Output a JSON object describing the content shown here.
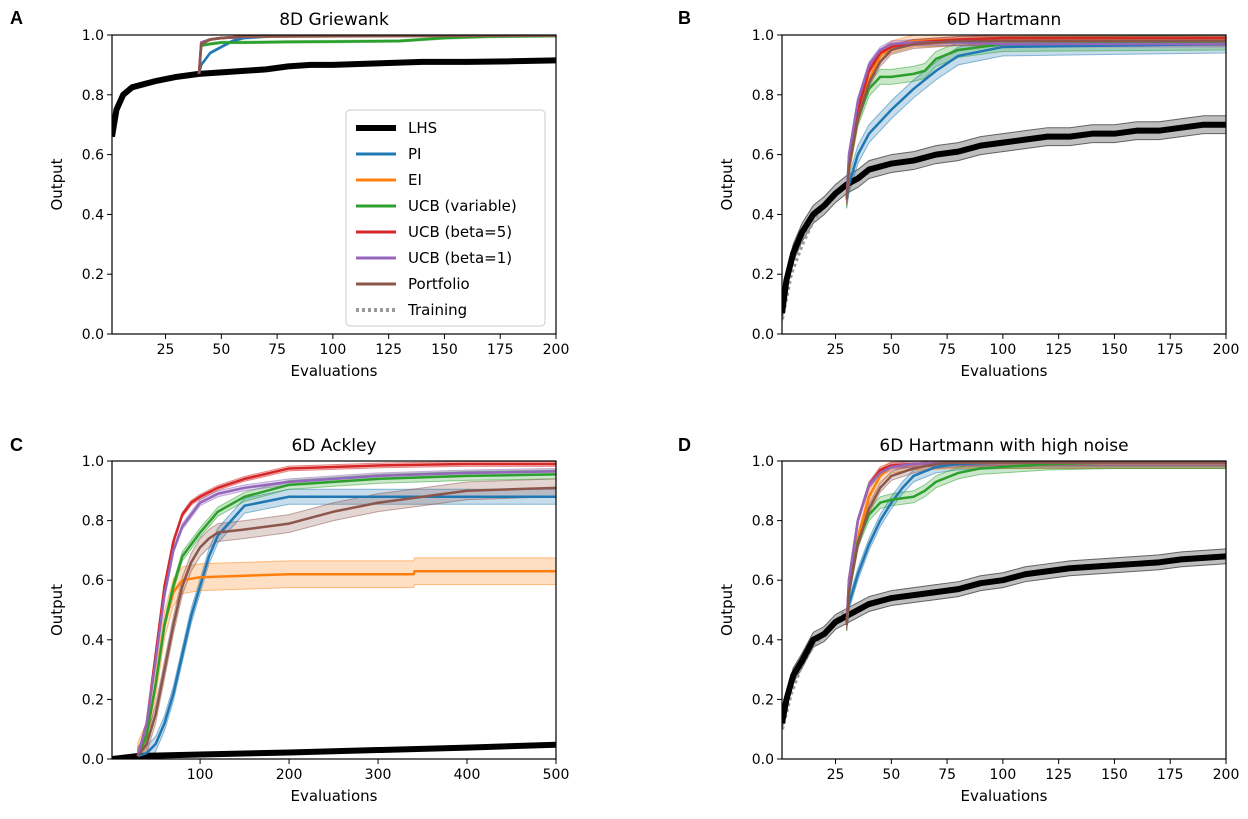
{
  "colors": {
    "LHS": "#000000",
    "PI": "#1f77b4",
    "EI": "#ff7f0e",
    "UCB (variable)": "#2ca02c",
    "UCB (beta=5)": "#d62728",
    "UCB (beta=1)": "#9467bd",
    "Portfolio": "#8c564b",
    "Training": "#999999"
  },
  "legend": {
    "entries": [
      "LHS",
      "PI",
      "EI",
      "UCB (variable)",
      "UCB (beta=5)",
      "UCB (beta=1)",
      "Portfolio",
      "Training"
    ]
  },
  "chart_data": [
    {
      "panel": "A",
      "type": "line",
      "title": "8D Griewank",
      "xlabel": "Evaluations",
      "ylabel": "Output",
      "xlim": [
        1,
        200
      ],
      "ylim": [
        0.0,
        1.0
      ],
      "xticks": [
        25,
        50,
        75,
        100,
        125,
        150,
        175,
        200
      ],
      "yticks": [
        0.0,
        0.2,
        0.4,
        0.6,
        0.8,
        1.0
      ],
      "ytick_labels": [
        "0.0",
        "0.2",
        "0.4",
        "0.6",
        "0.8",
        "1.0"
      ],
      "legend_position": "right",
      "series": [
        {
          "name": "Training",
          "x": [
            1,
            3,
            6,
            10,
            15,
            20,
            30,
            40
          ],
          "y": [
            0.66,
            0.75,
            0.8,
            0.825,
            0.835,
            0.845,
            0.86,
            0.87
          ],
          "band": 0
        },
        {
          "name": "LHS",
          "x": [
            1,
            3,
            6,
            10,
            15,
            20,
            30,
            40,
            50,
            60,
            70,
            80,
            90,
            100,
            120,
            140,
            160,
            180,
            200
          ],
          "y": [
            0.66,
            0.75,
            0.8,
            0.825,
            0.835,
            0.845,
            0.86,
            0.87,
            0.875,
            0.88,
            0.885,
            0.895,
            0.9,
            0.9,
            0.905,
            0.91,
            0.91,
            0.912,
            0.915
          ],
          "band": 0.004
        },
        {
          "name": "PI",
          "x": [
            40,
            41,
            45,
            50,
            55,
            60,
            70,
            80,
            200
          ],
          "y": [
            0.87,
            0.9,
            0.94,
            0.96,
            0.98,
            0.99,
            0.995,
            0.998,
            1.0
          ],
          "band": 0.004
        },
        {
          "name": "EI",
          "x": [
            40,
            41,
            45,
            50,
            60,
            200
          ],
          "y": [
            0.87,
            0.97,
            0.985,
            0.99,
            0.995,
            1.0
          ],
          "band": 0.003
        },
        {
          "name": "UCB (variable)",
          "x": [
            40,
            41,
            45,
            50,
            60,
            80,
            100,
            130,
            150,
            170,
            200
          ],
          "y": [
            0.87,
            0.965,
            0.97,
            0.975,
            0.975,
            0.977,
            0.978,
            0.98,
            0.99,
            0.995,
            0.997
          ],
          "band": 0.004
        },
        {
          "name": "UCB (beta=5)",
          "x": [
            40,
            41,
            45,
            50,
            70,
            200
          ],
          "y": [
            0.87,
            0.975,
            0.985,
            0.99,
            0.997,
            1.0
          ],
          "band": 0.003
        },
        {
          "name": "UCB (beta=1)",
          "x": [
            40,
            41,
            45,
            50,
            70,
            200
          ],
          "y": [
            0.87,
            0.975,
            0.985,
            0.99,
            0.997,
            1.0
          ],
          "band": 0.003
        },
        {
          "name": "Portfolio",
          "x": [
            40,
            41,
            45,
            50,
            60,
            200
          ],
          "y": [
            0.87,
            0.97,
            0.985,
            0.99,
            0.995,
            0.998
          ],
          "band": 0.003
        }
      ]
    },
    {
      "panel": "B",
      "type": "line",
      "title": "6D Hartmann",
      "xlabel": "Evaluations",
      "ylabel": "Output",
      "xlim": [
        1,
        200
      ],
      "ylim": [
        0.0,
        1.0
      ],
      "xticks": [
        25,
        50,
        75,
        100,
        125,
        150,
        175,
        200
      ],
      "yticks": [
        0.0,
        0.2,
        0.4,
        0.6,
        0.8,
        1.0
      ],
      "ytick_labels": [
        "0.0",
        "0.2",
        "0.4",
        "0.6",
        "0.8",
        "1.0"
      ],
      "series": [
        {
          "name": "Training",
          "x": [
            1,
            5,
            10,
            15,
            20,
            25,
            30
          ],
          "y": [
            0.05,
            0.2,
            0.3,
            0.38,
            0.43,
            0.47,
            0.5
          ],
          "band": 0
        },
        {
          "name": "LHS",
          "x": [
            1,
            3,
            6,
            10,
            15,
            20,
            25,
            30,
            35,
            40,
            50,
            60,
            70,
            80,
            90,
            100,
            110,
            120,
            130,
            140,
            150,
            160,
            170,
            180,
            190,
            200
          ],
          "y": [
            0.07,
            0.18,
            0.27,
            0.34,
            0.4,
            0.43,
            0.47,
            0.5,
            0.52,
            0.55,
            0.57,
            0.58,
            0.6,
            0.61,
            0.63,
            0.64,
            0.65,
            0.66,
            0.66,
            0.67,
            0.67,
            0.68,
            0.68,
            0.69,
            0.7,
            0.7
          ],
          "band": 0.03
        },
        {
          "name": "PI",
          "x": [
            30,
            31,
            35,
            40,
            50,
            60,
            70,
            80,
            100,
            150,
            200
          ],
          "y": [
            0.45,
            0.5,
            0.6,
            0.67,
            0.75,
            0.82,
            0.88,
            0.93,
            0.96,
            0.965,
            0.97
          ],
          "band": 0.03
        },
        {
          "name": "EI",
          "x": [
            30,
            31,
            35,
            40,
            45,
            50,
            60,
            80,
            100,
            200
          ],
          "y": [
            0.45,
            0.55,
            0.72,
            0.85,
            0.93,
            0.96,
            0.98,
            0.985,
            0.99,
            0.99
          ],
          "band": 0.02
        },
        {
          "name": "UCB (variable)",
          "x": [
            30,
            31,
            35,
            40,
            45,
            50,
            60,
            65,
            70,
            80,
            90,
            100,
            200
          ],
          "y": [
            0.45,
            0.56,
            0.72,
            0.82,
            0.86,
            0.86,
            0.87,
            0.88,
            0.92,
            0.95,
            0.96,
            0.97,
            0.975
          ],
          "band": 0.025
        },
        {
          "name": "UCB (beta=5)",
          "x": [
            30,
            31,
            35,
            40,
            45,
            50,
            60,
            70,
            80,
            100,
            200
          ],
          "y": [
            0.45,
            0.58,
            0.75,
            0.88,
            0.94,
            0.96,
            0.975,
            0.98,
            0.985,
            0.99,
            0.99
          ],
          "band": 0.01
        },
        {
          "name": "UCB (beta=1)",
          "x": [
            30,
            31,
            35,
            40,
            45,
            50,
            60,
            80,
            100,
            200
          ],
          "y": [
            0.45,
            0.6,
            0.78,
            0.9,
            0.95,
            0.97,
            0.975,
            0.975,
            0.97,
            0.97
          ],
          "band": 0.01
        },
        {
          "name": "Portfolio",
          "x": [
            30,
            31,
            35,
            40,
            45,
            50,
            60,
            70,
            80,
            100,
            200
          ],
          "y": [
            0.45,
            0.56,
            0.72,
            0.84,
            0.91,
            0.95,
            0.97,
            0.975,
            0.98,
            0.98,
            0.98
          ],
          "band": 0.015
        }
      ]
    },
    {
      "panel": "C",
      "type": "line",
      "title": "6D Ackley",
      "xlabel": "Evaluations",
      "ylabel": "Output",
      "xlim": [
        1,
        500
      ],
      "ylim": [
        0.0,
        1.0
      ],
      "xticks": [
        100,
        200,
        300,
        400,
        500
      ],
      "yticks": [
        0.0,
        0.2,
        0.4,
        0.6,
        0.8,
        1.0
      ],
      "ytick_labels": [
        "0.0",
        "0.2",
        "0.4",
        "0.6",
        "0.8",
        "1.0"
      ],
      "series": [
        {
          "name": "Training",
          "x": [
            1,
            10,
            20,
            30
          ],
          "y": [
            0.0,
            0.003,
            0.006,
            0.01
          ],
          "band": 0
        },
        {
          "name": "LHS",
          "x": [
            1,
            30,
            100,
            200,
            300,
            400,
            500
          ],
          "y": [
            0.0,
            0.01,
            0.015,
            0.022,
            0.03,
            0.038,
            0.048
          ],
          "band": 0.004
        },
        {
          "name": "PI",
          "x": [
            30,
            40,
            50,
            60,
            70,
            80,
            90,
            100,
            110,
            120,
            150,
            200,
            300,
            400,
            500
          ],
          "y": [
            0.01,
            0.02,
            0.05,
            0.12,
            0.22,
            0.35,
            0.48,
            0.58,
            0.68,
            0.75,
            0.85,
            0.88,
            0.88,
            0.88,
            0.88
          ],
          "band": 0.025
        },
        {
          "name": "EI",
          "x": [
            30,
            40,
            50,
            60,
            70,
            80,
            100,
            200,
            340,
            341,
            500
          ],
          "y": [
            0.01,
            0.08,
            0.25,
            0.45,
            0.56,
            0.6,
            0.61,
            0.62,
            0.62,
            0.63,
            0.63
          ],
          "band": 0.045
        },
        {
          "name": "UCB (variable)",
          "x": [
            30,
            40,
            50,
            60,
            70,
            80,
            100,
            120,
            150,
            200,
            300,
            400,
            500
          ],
          "y": [
            0.01,
            0.08,
            0.25,
            0.45,
            0.58,
            0.68,
            0.76,
            0.83,
            0.88,
            0.92,
            0.94,
            0.95,
            0.955
          ],
          "band": 0.015
        },
        {
          "name": "UCB (beta=5)",
          "x": [
            30,
            40,
            50,
            60,
            70,
            80,
            90,
            100,
            120,
            150,
            200,
            300,
            400,
            500
          ],
          "y": [
            0.01,
            0.12,
            0.35,
            0.58,
            0.73,
            0.82,
            0.86,
            0.88,
            0.91,
            0.94,
            0.975,
            0.985,
            0.99,
            0.99
          ],
          "band": 0.008
        },
        {
          "name": "UCB (beta=1)",
          "x": [
            30,
            40,
            50,
            60,
            70,
            80,
            100,
            120,
            150,
            200,
            300,
            400,
            500
          ],
          "y": [
            0.01,
            0.12,
            0.33,
            0.55,
            0.7,
            0.78,
            0.86,
            0.89,
            0.91,
            0.93,
            0.95,
            0.96,
            0.965
          ],
          "band": 0.01
        },
        {
          "name": "Portfolio",
          "x": [
            30,
            40,
            50,
            60,
            70,
            80,
            90,
            100,
            110,
            120,
            150,
            200,
            250,
            300,
            350,
            400,
            450,
            500
          ],
          "y": [
            0.01,
            0.05,
            0.15,
            0.3,
            0.45,
            0.58,
            0.66,
            0.71,
            0.74,
            0.76,
            0.77,
            0.79,
            0.83,
            0.86,
            0.88,
            0.9,
            0.905,
            0.91
          ],
          "band": 0.03
        }
      ]
    },
    {
      "panel": "D",
      "type": "line",
      "title": "6D Hartmann with high noise",
      "xlabel": "Evaluations",
      "ylabel": "Output",
      "xlim": [
        1,
        200
      ],
      "ylim": [
        0.0,
        1.0
      ],
      "xticks": [
        25,
        50,
        75,
        100,
        125,
        150,
        175,
        200
      ],
      "yticks": [
        0.0,
        0.2,
        0.4,
        0.6,
        0.8,
        1.0
      ],
      "ytick_labels": [
        "0.0",
        "0.2",
        "0.4",
        "0.6",
        "0.8",
        "1.0"
      ],
      "series": [
        {
          "name": "Training",
          "x": [
            1,
            5,
            10,
            15,
            20,
            25,
            30
          ],
          "y": [
            0.1,
            0.22,
            0.32,
            0.38,
            0.42,
            0.46,
            0.5
          ],
          "band": 0
        },
        {
          "name": "LHS",
          "x": [
            1,
            3,
            6,
            10,
            15,
            20,
            25,
            30,
            35,
            40,
            50,
            60,
            70,
            80,
            90,
            100,
            110,
            120,
            130,
            140,
            150,
            160,
            170,
            180,
            190,
            200
          ],
          "y": [
            0.12,
            0.2,
            0.28,
            0.33,
            0.4,
            0.42,
            0.46,
            0.48,
            0.5,
            0.52,
            0.54,
            0.55,
            0.56,
            0.57,
            0.59,
            0.6,
            0.62,
            0.63,
            0.64,
            0.645,
            0.65,
            0.655,
            0.66,
            0.67,
            0.675,
            0.68
          ],
          "band": 0.025
        },
        {
          "name": "PI",
          "x": [
            30,
            31,
            35,
            40,
            45,
            50,
            55,
            60,
            70,
            80,
            100,
            200
          ],
          "y": [
            0.45,
            0.52,
            0.62,
            0.72,
            0.8,
            0.86,
            0.91,
            0.95,
            0.98,
            0.99,
            0.995,
            0.995
          ],
          "band": 0.02
        },
        {
          "name": "EI",
          "x": [
            30,
            31,
            35,
            40,
            45,
            50,
            60,
            80,
            200
          ],
          "y": [
            0.45,
            0.56,
            0.74,
            0.88,
            0.95,
            0.98,
            0.99,
            0.995,
            0.995
          ],
          "band": 0.02
        },
        {
          "name": "UCB (variable)",
          "x": [
            30,
            31,
            35,
            40,
            45,
            50,
            60,
            65,
            70,
            80,
            90,
            100,
            120,
            150,
            200
          ],
          "y": [
            0.45,
            0.56,
            0.73,
            0.82,
            0.86,
            0.87,
            0.88,
            0.9,
            0.93,
            0.96,
            0.975,
            0.98,
            0.99,
            0.995,
            0.995
          ],
          "band": 0.02
        },
        {
          "name": "UCB (beta=5)",
          "x": [
            30,
            31,
            35,
            40,
            45,
            50,
            60,
            80,
            200
          ],
          "y": [
            0.45,
            0.6,
            0.8,
            0.92,
            0.97,
            0.985,
            0.99,
            0.995,
            0.995
          ],
          "band": 0.01
        },
        {
          "name": "UCB (beta=1)",
          "x": [
            30,
            31,
            35,
            40,
            45,
            50,
            60,
            80,
            200
          ],
          "y": [
            0.45,
            0.6,
            0.8,
            0.92,
            0.96,
            0.98,
            0.99,
            0.995,
            0.995
          ],
          "band": 0.01
        },
        {
          "name": "Portfolio",
          "x": [
            30,
            31,
            35,
            40,
            45,
            50,
            60,
            70,
            80,
            200
          ],
          "y": [
            0.45,
            0.56,
            0.72,
            0.84,
            0.91,
            0.95,
            0.975,
            0.99,
            0.995,
            0.995
          ],
          "band": 0.015
        }
      ]
    }
  ]
}
